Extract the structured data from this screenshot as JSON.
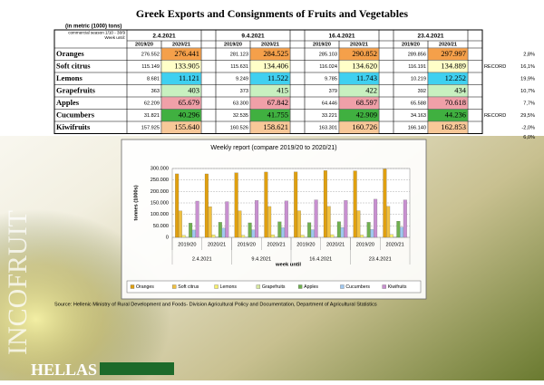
{
  "title": "Greek Exports and Consignments of Fruits and Vegetables",
  "subtitle": "(in metric (1000) tons)",
  "table": {
    "header_label": [
      "commercial season 1/10 - 30/9",
      "Week until:"
    ],
    "weeks": [
      "2.4.2021",
      "9.4.2021",
      "16.4.2021",
      "23.4.2021"
    ],
    "seasons": [
      "2019/20",
      "2020/21"
    ],
    "rows": [
      {
        "name": "Oranges",
        "color": "#f5a04a",
        "cells": [
          "276.552",
          "276.441",
          "281.123",
          "284.525",
          "285.103",
          "290.852",
          "289.856",
          "297.997"
        ],
        "change": "2,8%"
      },
      {
        "name": "Soft citrus",
        "color": "#ffffc8",
        "cells": [
          "115.149",
          "133.905",
          "115.631",
          "134.406",
          "116.024",
          "134.620",
          "116.191",
          "134.889"
        ],
        "note": "RECORD",
        "change": "16,1%"
      },
      {
        "name": "Lemons",
        "color": "#3fd0f0",
        "cells": [
          "8.681",
          "11.121",
          "9.249",
          "11.522",
          "9.785",
          "11.743",
          "10.219",
          "12.252"
        ],
        "change": "19,9%"
      },
      {
        "name": "Grapefruits",
        "color": "#c8f0c0",
        "cells": [
          "363",
          "403",
          "373",
          "415",
          "379",
          "422",
          "392",
          "434"
        ],
        "change": "10,7%"
      },
      {
        "name": "Apples",
        "color": "#f0a0a8",
        "cells": [
          "62.209",
          "65.679",
          "63.300",
          "67.842",
          "64.446",
          "68.597",
          "65.588",
          "70.618"
        ],
        "change": "7,7%"
      },
      {
        "name": "Cucumbers",
        "color": "#40b040",
        "cells": [
          "31.821",
          "40.296",
          "32.535",
          "41.755",
          "33.221",
          "42.909",
          "34.163",
          "44.236"
        ],
        "note": "RECORD",
        "change": "29,5%"
      },
      {
        "name": "Kiwifruits",
        "color": "#f8c898",
        "cells": [
          "157.925",
          "155.640",
          "160.526",
          "158.621",
          "163.301",
          "160.726",
          "166.140",
          "162.853"
        ],
        "change": "-2,0%"
      }
    ],
    "extra_change": "6,0%"
  },
  "chart_data": {
    "type": "bar",
    "title": "Weekly report (compare 2019/20 to 2020/21)",
    "y_label": "tonnes (1000s)",
    "x_label": "week until",
    "categories": [
      "2019/20",
      "2020/21",
      "2019/20",
      "2020/21",
      "2019/20",
      "2020/21",
      "2019/20",
      "2020/21"
    ],
    "groups": [
      "2.4.2021",
      "9.4.2021",
      "16.4.2021",
      "23.4.2021"
    ],
    "series": [
      {
        "name": "Oranges",
        "color": "#e0a010",
        "values": [
          276552,
          276441,
          281123,
          284525,
          285103,
          290852,
          289856,
          297997
        ]
      },
      {
        "name": "Soft citrus",
        "color": "#f0c040",
        "values": [
          115149,
          133905,
          115631,
          134406,
          116024,
          134620,
          116191,
          134889
        ]
      },
      {
        "name": "Lemons",
        "color": "#f8f070",
        "values": [
          8681,
          11121,
          9249,
          11522,
          9785,
          11743,
          10219,
          12252
        ]
      },
      {
        "name": "Grapefruits",
        "color": "#d8e8a0",
        "values": [
          363,
          403,
          373,
          415,
          379,
          422,
          392,
          434
        ]
      },
      {
        "name": "Apples",
        "color": "#70b050",
        "values": [
          62209,
          65679,
          63300,
          67842,
          64446,
          68597,
          65588,
          70618
        ]
      },
      {
        "name": "Cucumbers",
        "color": "#a0c8f0",
        "values": [
          31821,
          40296,
          32535,
          41755,
          33221,
          42909,
          34163,
          44236
        ]
      },
      {
        "name": "Kiwifruits",
        "color": "#c890d0",
        "values": [
          157925,
          155640,
          160526,
          158621,
          163301,
          160726,
          166140,
          162853
        ]
      }
    ],
    "ylim": [
      0,
      300000
    ],
    "yticks": [
      0,
      {
        "value": 50000,
        "label": "50.000"
      },
      {
        "value": 100000,
        "label": "100.000"
      },
      {
        "value": 150000,
        "label": "150.000"
      },
      {
        "value": 200000,
        "label": "200.000"
      },
      {
        "value": 250000,
        "label": "250.000"
      },
      {
        "value": 300000,
        "label": "300.000"
      }
    ],
    "grid": true,
    "legend": "bottom"
  },
  "source": "Source: Hellenic Ministry of Rural Development and Foods- Division Agricultural Policy and Documentation, Department of Agricultural Statistics",
  "branding": {
    "vertical": "INCOFRUIT",
    "bottom": "HELLAS"
  }
}
